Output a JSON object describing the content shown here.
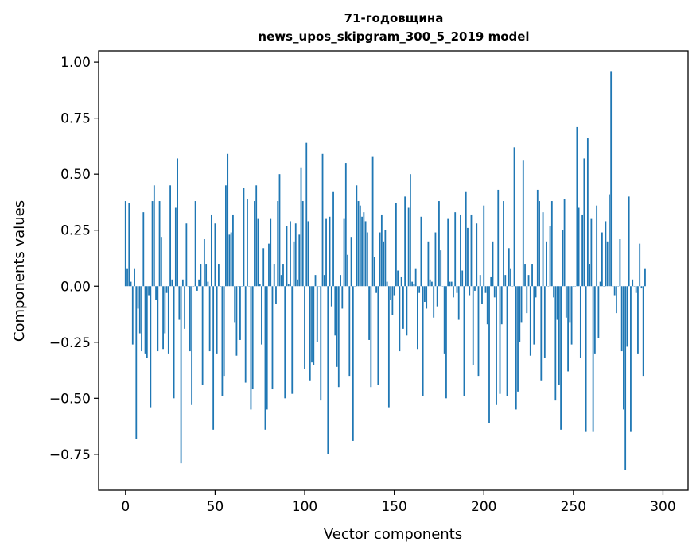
{
  "chart_data": {
    "type": "bar",
    "title": [
      "71-годовщина",
      "news_upos_skipgram_300_5_2019 model"
    ],
    "xlabel": "Vector components",
    "ylabel": "Components values",
    "xlim": [
      -15,
      314
    ],
    "ylim": [
      -0.91,
      1.05
    ],
    "xticks": [
      0,
      50,
      100,
      150,
      200,
      250,
      300
    ],
    "xtick_labels": [
      "0",
      "50",
      "100",
      "150",
      "200",
      "250",
      "300"
    ],
    "yticks": [
      -0.75,
      -0.5,
      -0.25,
      0.0,
      0.25,
      0.5,
      0.75,
      1.0
    ],
    "ytick_labels": [
      "−0.75",
      "−0.50",
      "−0.25",
      "0.00",
      "0.25",
      "0.50",
      "0.75",
      "1.00"
    ],
    "grid": false,
    "color": "#1f77b4",
    "x_start": 0,
    "values": [
      0.38,
      0.08,
      0.37,
      0.02,
      -0.26,
      0.08,
      -0.68,
      -0.1,
      -0.21,
      -0.29,
      0.33,
      -0.3,
      -0.32,
      -0.04,
      -0.54,
      0.38,
      0.45,
      -0.06,
      -0.29,
      0.38,
      0.22,
      -0.28,
      -0.21,
      -0.03,
      -0.3,
      0.45,
      0.03,
      -0.5,
      0.35,
      0.57,
      -0.15,
      -0.79,
      0.03,
      -0.19,
      0.28,
      0.0,
      -0.29,
      -0.53,
      0.0,
      0.38,
      -0.02,
      0.03,
      0.1,
      -0.44,
      0.21,
      0.1,
      0.02,
      -0.29,
      0.32,
      -0.64,
      0.28,
      -0.3,
      0.1,
      0.0,
      -0.49,
      -0.4,
      0.45,
      0.59,
      0.23,
      0.24,
      0.32,
      -0.16,
      -0.31,
      0.0,
      -0.24,
      0.0,
      0.44,
      -0.43,
      0.39,
      0.0,
      -0.55,
      -0.46,
      0.38,
      0.45,
      0.3,
      0.01,
      -0.26,
      0.17,
      -0.64,
      -0.55,
      0.19,
      0.3,
      -0.46,
      0.1,
      -0.08,
      0.38,
      0.5,
      0.05,
      0.1,
      -0.5,
      0.27,
      0.01,
      0.29,
      -0.48,
      0.2,
      0.28,
      0.03,
      0.23,
      0.53,
      0.38,
      -0.37,
      0.64,
      0.29,
      -0.42,
      -0.34,
      -0.35,
      0.05,
      -0.25,
      0.0,
      -0.51,
      0.59,
      0.05,
      0.3,
      -0.75,
      0.31,
      -0.09,
      0.42,
      -0.22,
      -0.36,
      -0.45,
      0.05,
      -0.1,
      0.3,
      0.55,
      0.14,
      -0.4,
      0.22,
      -0.69,
      0.0,
      0.45,
      0.38,
      0.36,
      0.31,
      0.33,
      0.29,
      0.24,
      -0.24,
      -0.45,
      0.58,
      0.13,
      -0.03,
      -0.44,
      0.24,
      0.32,
      0.2,
      0.25,
      0.02,
      -0.54,
      -0.06,
      -0.13,
      -0.04,
      0.37,
      0.07,
      -0.29,
      0.04,
      -0.19,
      0.4,
      -0.22,
      0.35,
      0.5,
      0.02,
      0.01,
      0.08,
      -0.28,
      -0.03,
      0.31,
      -0.49,
      -0.07,
      -0.1,
      0.2,
      0.03,
      0.02,
      -0.14,
      0.24,
      -0.09,
      0.38,
      0.16,
      0.0,
      -0.3,
      -0.5,
      0.3,
      0.02,
      0.02,
      -0.05,
      0.33,
      -0.03,
      -0.15,
      0.32,
      0.07,
      -0.49,
      0.42,
      0.26,
      -0.04,
      0.32,
      -0.35,
      -0.02,
      0.28,
      -0.4,
      0.05,
      -0.08,
      0.36,
      -0.03,
      -0.17,
      -0.61,
      0.04,
      0.2,
      -0.05,
      -0.53,
      0.43,
      -0.48,
      -0.17,
      0.38,
      0.05,
      -0.49,
      0.17,
      0.08,
      0.0,
      0.62,
      -0.55,
      -0.47,
      -0.25,
      -0.16,
      0.56,
      0.1,
      -0.12,
      0.05,
      -0.31,
      0.1,
      -0.26,
      -0.05,
      0.43,
      0.38,
      -0.42,
      0.33,
      -0.32,
      0.2,
      0.0,
      0.27,
      0.38,
      -0.05,
      -0.51,
      -0.15,
      -0.44,
      -0.64,
      0.25,
      0.39,
      -0.14,
      -0.38,
      -0.16,
      -0.26,
      0.0,
      0.0,
      0.71,
      0.35,
      -0.32,
      0.32,
      0.57,
      -0.65,
      0.66,
      0.1,
      0.3,
      -0.65,
      -0.3,
      0.36,
      -0.23,
      0.02,
      0.24,
      0.0,
      0.29,
      0.2,
      0.41,
      0.96,
      0.0,
      -0.04,
      -0.12,
      0.0,
      0.21,
      -0.29,
      -0.55,
      -0.82,
      -0.27,
      0.4,
      -0.65,
      0.03,
      0.0,
      -0.03,
      -0.3,
      0.19,
      -0.01,
      -0.4,
      0.08
    ]
  }
}
